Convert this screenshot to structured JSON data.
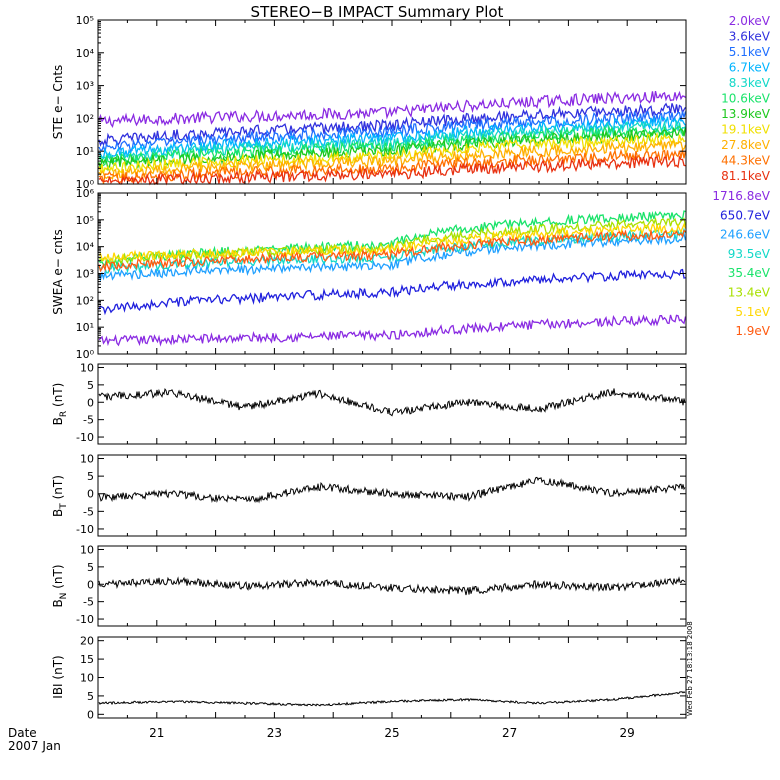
{
  "title": "STEREO−B IMPACT Summary Plot",
  "stamp": "Wed Feb 27 18:13:18 2008",
  "date_label": "Date",
  "date_value": "2007 Jan",
  "x_axis": {
    "tick_labels": [
      "21",
      "23",
      "25",
      "27",
      "29"
    ],
    "tick_days": [
      21,
      23,
      25,
      27,
      29
    ],
    "xlim_days": [
      20,
      30
    ]
  },
  "chart_data": [
    {
      "type": "line",
      "ylabel": "STE e− Cnts",
      "scale": "log",
      "ylim": [
        1,
        100000
      ],
      "ytick_labels": [
        "10⁰",
        "10¹",
        "10²",
        "10³",
        "10⁴",
        "10⁵"
      ],
      "series": [
        {
          "name": "2.0keV",
          "color": "#8a2be2",
          "values": [
            80,
            150,
            500
          ]
        },
        {
          "name": "3.6keV",
          "color": "#3030dd",
          "values": [
            20,
            60,
            200
          ]
        },
        {
          "name": "5.1keV",
          "color": "#1f6fff",
          "values": [
            12,
            40,
            120
          ]
        },
        {
          "name": "6.7keV",
          "color": "#00b4ff",
          "values": [
            8,
            25,
            80
          ]
        },
        {
          "name": "8.3keV",
          "color": "#11d8c8",
          "values": [
            6,
            18,
            60
          ]
        },
        {
          "name": "10.6keV",
          "color": "#19e36a",
          "values": [
            5,
            14,
            45
          ]
        },
        {
          "name": "13.9keV",
          "color": "#1dc81d",
          "values": [
            4,
            10,
            35
          ]
        },
        {
          "name": "19.1keV",
          "color": "#f0e000",
          "values": [
            3,
            7,
            25
          ]
        },
        {
          "name": "27.8keV",
          "color": "#ffb000",
          "values": [
            2,
            5,
            15
          ]
        },
        {
          "name": "44.3keV",
          "color": "#ff7000",
          "values": [
            1.5,
            3,
            8
          ]
        },
        {
          "name": "81.1keV",
          "color": "#e83010",
          "values": [
            1.2,
            2,
            5
          ]
        }
      ]
    },
    {
      "type": "line",
      "ylabel": "SWEA e− cnts",
      "scale": "log",
      "ylim": [
        1,
        1000000
      ],
      "ytick_labels": [
        "10⁰",
        "10¹",
        "10²",
        "10³",
        "10⁴",
        "10⁵",
        "10⁶"
      ],
      "series": [
        {
          "name": "1716.8eV",
          "color": "#8a2be2",
          "values": [
            3,
            5,
            20
          ]
        },
        {
          "name": "650.7eV",
          "color": "#2020dd",
          "values": [
            40,
            200,
            1000
          ]
        },
        {
          "name": "246.6eV",
          "color": "#1fa0ff",
          "values": [
            800,
            2000,
            20000
          ]
        },
        {
          "name": "93.5eV",
          "color": "#11d8c8",
          "values": [
            1500,
            4000,
            30000
          ]
        },
        {
          "name": "35.4eV",
          "color": "#19e36a",
          "values": [
            2500,
            12000,
            150000
          ]
        },
        {
          "name": "13.4eV",
          "color": "#a8e000",
          "values": [
            3000,
            9000,
            80000
          ]
        },
        {
          "name": "5.1eV",
          "color": "#ffd700",
          "values": [
            4000,
            8000,
            50000
          ]
        },
        {
          "name": "1.9eV",
          "color": "#ff5a10",
          "values": [
            1800,
            5000,
            30000
          ]
        }
      ]
    },
    {
      "type": "line",
      "ylabel_main": "B",
      "ylabel_sub": "R",
      "ylabel_unit": "(nT)",
      "ylim": [
        -12,
        11
      ],
      "yticks": [
        10,
        5,
        0,
        -5,
        -10
      ],
      "series": [
        {
          "color": "#000000",
          "values": [
            1.5,
            2.8,
            -1.5,
            2.5,
            -3,
            0,
            -2,
            3,
            0
          ]
        }
      ]
    },
    {
      "type": "line",
      "ylabel_main": "B",
      "ylabel_sub": "T",
      "ylabel_unit": "(nT)",
      "ylim": [
        -12,
        11
      ],
      "yticks": [
        10,
        5,
        0,
        -5,
        -10
      ],
      "series": [
        {
          "color": "#000000",
          "values": [
            -1,
            0,
            -2,
            2,
            0,
            -1,
            4,
            0,
            2
          ]
        }
      ]
    },
    {
      "type": "line",
      "ylabel_main": "B",
      "ylabel_sub": "N",
      "ylabel_unit": "(nT)",
      "ylim": [
        -12,
        11
      ],
      "yticks": [
        10,
        5,
        0,
        -5,
        -10
      ],
      "series": [
        {
          "color": "#000000",
          "values": [
            0,
            1,
            -0.5,
            0.5,
            -1,
            -2,
            0,
            -1,
            1
          ]
        }
      ]
    },
    {
      "type": "line",
      "ylabel": "IBI (nT)",
      "ylim": [
        -1,
        21
      ],
      "yticks": [
        20,
        15,
        10,
        5,
        0
      ],
      "series": [
        {
          "color": "#000000",
          "values": [
            3,
            3.5,
            3,
            2.5,
            3.5,
            4,
            3,
            4,
            6
          ]
        }
      ]
    }
  ]
}
